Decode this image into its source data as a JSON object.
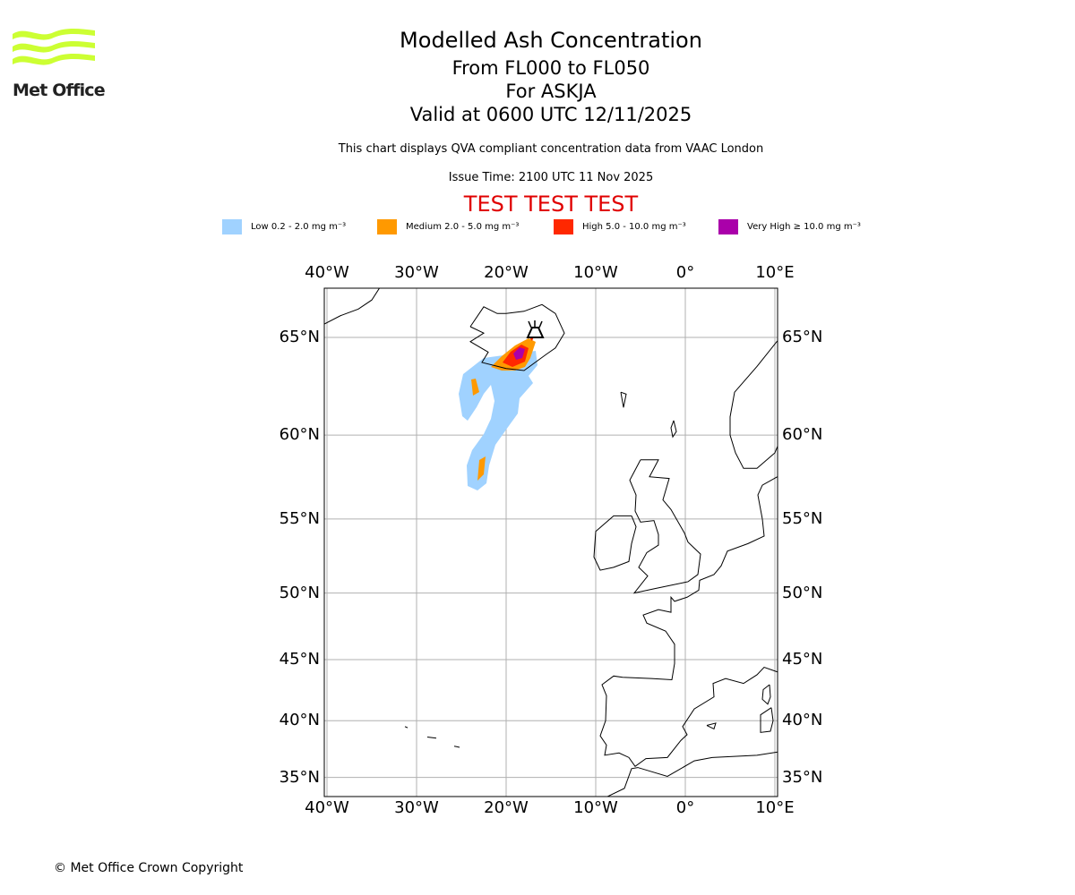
{
  "logo": {
    "text": "Met Office",
    "color": "#ccff33"
  },
  "header": {
    "title": "Modelled Ash Concentration",
    "levels": "From FL000 to FL050",
    "volcano": "For ASKJA",
    "valid": "Valid at 0600 UTC 12/11/2025",
    "description": "This chart displays QVA compliant concentration data from VAAC London",
    "issue_time": "Issue Time: 2100 UTC 11 Nov 2025",
    "test_banner": "TEST TEST TEST"
  },
  "legend": [
    {
      "label": "Low 0.2 - 2.0 mg m⁻³",
      "color": "#a0d2ff"
    },
    {
      "label": "Medium 2.0 - 5.0 mg m⁻³",
      "color": "#ff9900"
    },
    {
      "label": "High 5.0 - 10.0 mg m⁻³",
      "color": "#ff2800"
    },
    {
      "label": "Very High ≥ 10.0 mg m⁻³",
      "color": "#aa00aa"
    }
  ],
  "map": {
    "lon_labels": [
      "40°W",
      "30°W",
      "20°W",
      "10°W",
      "0°",
      "10°E"
    ],
    "lat_labels": [
      "65°N",
      "60°N",
      "55°N",
      "50°N",
      "45°N",
      "40°N",
      "35°N"
    ],
    "lon_ticks": [
      -40,
      -30,
      -20,
      -10,
      0,
      10
    ],
    "lat_ticks": [
      65,
      60,
      55,
      50,
      45,
      40,
      35
    ],
    "volcano_icon": "volcano-icon"
  },
  "footer": {
    "copyright": "© Met Office Crown Copyright"
  }
}
